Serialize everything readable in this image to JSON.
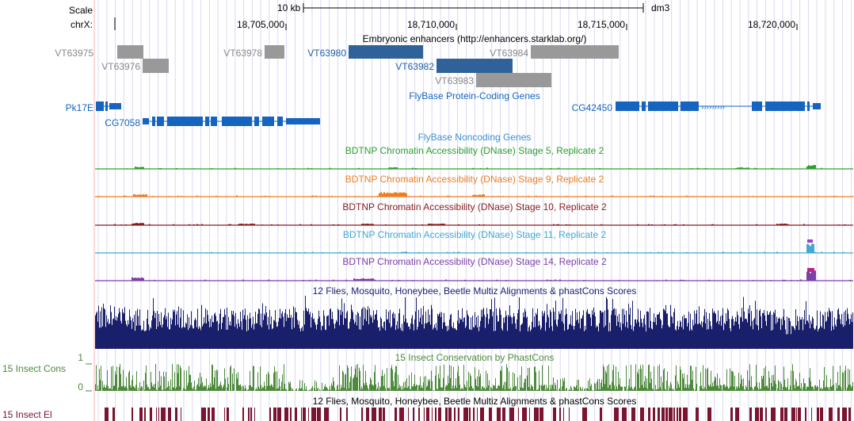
{
  "ruler": {
    "scale_label": "Scale",
    "scale_value": "10 kb",
    "assembly": "dm3",
    "chrom_label": "chrX:",
    "coords": [
      "18,705,000",
      "18,710,000",
      "18,715,000",
      "18,720,000"
    ]
  },
  "tracks": {
    "enhancers_title": "Embryonic enhancers (http://enhancers.starklab.org/)",
    "enhancers": [
      {
        "name": "VT63975",
        "selected": false
      },
      {
        "name": "VT63976",
        "selected": false
      },
      {
        "name": "VT63978",
        "selected": false
      },
      {
        "name": "VT63980",
        "selected": true
      },
      {
        "name": "VT63982",
        "selected": true
      },
      {
        "name": "VT63983",
        "selected": false
      },
      {
        "name": "VT63984",
        "selected": false
      }
    ],
    "protein_coding_title": "FlyBase Protein-Coding Genes",
    "genes": [
      "Pk17E",
      "CG7058",
      "CG42450"
    ],
    "noncoding_title": "FlyBase Noncoding Genes",
    "dnase": [
      {
        "title": "BDTNP Chromatin Accessibility (DNase) Stage 5, Replicate 2",
        "color": "#2ca02c"
      },
      {
        "title": "BDTNP Chromatin Accessibility (DNase) Stage 9, Replicate 2",
        "color": "#f07d1e"
      },
      {
        "title": "BDTNP Chromatin Accessibility (DNase) Stage 10, Replicate 2",
        "color": "#8b1a1a"
      },
      {
        "title": "BDTNP Chromatin Accessibility (DNase) Stage 11, Replicate 2",
        "color": "#3fa9d1"
      },
      {
        "title": "BDTNP Chromatin Accessibility (DNase) Stage 14, Replicate 2",
        "color": "#7b3fa6"
      }
    ],
    "multiz_title": "12 Flies, Mosquito, Honeybee, Beetle Multiz Alignments & phastCons Scores",
    "cons_title": "15 Insect Conservation by PhastCons",
    "cons_label": "15 Insect Cons",
    "cons_max": "1",
    "cons_min": "0",
    "elements_title": "12 Flies, Mosquito, Honeybee, Beetle Multiz Alignments & phastCons Scores",
    "elements_label": "15 Insect El"
  },
  "colors": {
    "gene_blue": "#1565c0",
    "enhancer_gray": "#999999",
    "enhancer_label_gray": "#888888",
    "multiz_navy": "#1a1f6b",
    "cons_green": "#4d8a3a",
    "elements_maroon": "#7a1430",
    "grid_line": "#d8d8f4",
    "left_border": "#ffb0b0"
  }
}
